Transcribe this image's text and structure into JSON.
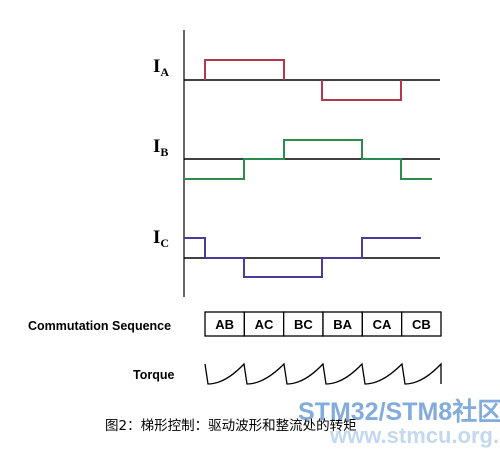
{
  "signals": [
    {
      "name": "I",
      "subscript": "A"
    },
    {
      "name": "I",
      "subscript": "B"
    },
    {
      "name": "I",
      "subscript": "C"
    }
  ],
  "commutation_sequence": {
    "label": "Commutation Sequence",
    "steps": [
      "AB",
      "AC",
      "BC",
      "BA",
      "CA",
      "CB"
    ]
  },
  "torque_label": "Torque",
  "caption": "图2：梯形控制：驱动波形和整流处的转矩",
  "watermark": {
    "title": "STM32/STM8社区",
    "url": "www.stmcu.org.cn"
  }
}
